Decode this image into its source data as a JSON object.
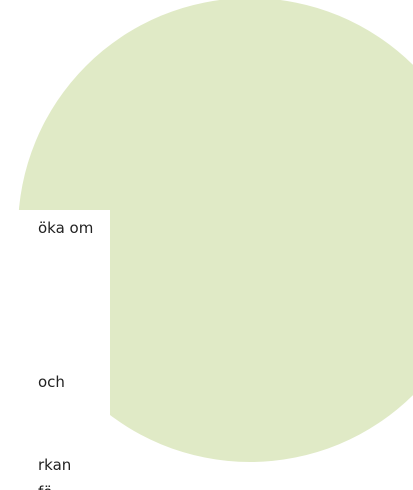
{
  "text_fragments": [
    "öka om",
    "och",
    "rkan",
    "fö"
  ]
}
